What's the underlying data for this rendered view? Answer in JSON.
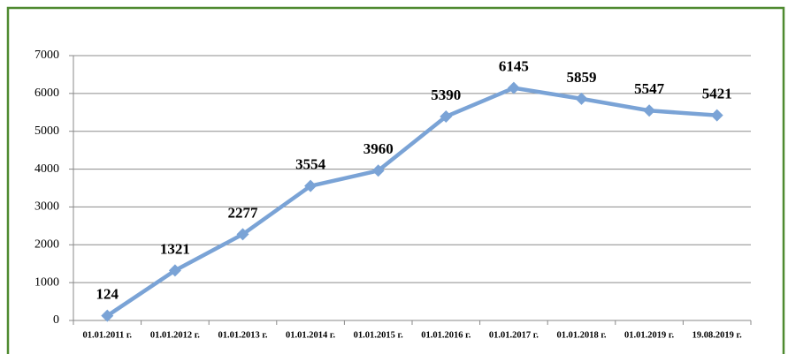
{
  "chart_data": {
    "type": "line",
    "categories": [
      "01.01.2011 г.",
      "01.01.2012 г.",
      "01.01.2013 г.",
      "01.01.2014 г.",
      "01.01.2015 г.",
      "01.01.2016 г.",
      "01.01.2017 г.",
      "01.01.2018 г.",
      "01.01.2019 г.",
      "19.08.2019 г."
    ],
    "values": [
      124,
      1321,
      2277,
      3554,
      3960,
      5390,
      6145,
      5859,
      5547,
      5421
    ],
    "color": "#7aa3d6",
    "ylim": [
      0,
      7000
    ],
    "yticks": [
      0,
      1000,
      2000,
      3000,
      4000,
      5000,
      6000,
      7000
    ],
    "grid": true
  }
}
